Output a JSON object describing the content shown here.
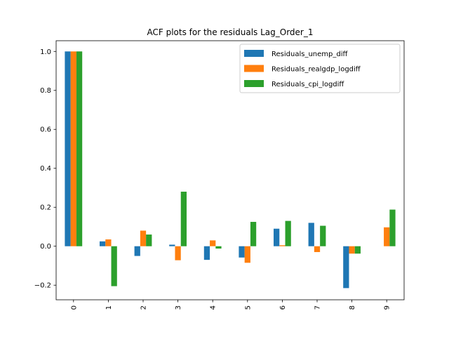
{
  "chart_data": {
    "type": "bar",
    "title": "ACF plots for the residuals Lag_Order_1",
    "xlabel": "",
    "ylabel": "",
    "categories": [
      "0",
      "1",
      "2",
      "3",
      "4",
      "5",
      "6",
      "7",
      "8",
      "9"
    ],
    "series": [
      {
        "name": "Residuals_unemp_diff",
        "color": "#1f77b4",
        "values": [
          1.0,
          0.025,
          -0.05,
          0.008,
          -0.07,
          -0.058,
          0.09,
          0.12,
          -0.215,
          0.0
        ]
      },
      {
        "name": "Residuals_realgdp_logdiff",
        "color": "#ff7f0e",
        "values": [
          1.0,
          0.035,
          0.08,
          -0.072,
          0.03,
          -0.085,
          0.005,
          -0.03,
          -0.038,
          0.097
        ]
      },
      {
        "name": "Residuals_cpi_logdiff",
        "color": "#2ca02c",
        "values": [
          1.0,
          -0.205,
          0.06,
          0.28,
          -0.012,
          0.125,
          0.13,
          0.105,
          -0.038,
          0.188
        ]
      }
    ],
    "ylim": [
      -0.275,
      1.055
    ],
    "yticks": [
      -0.2,
      0.0,
      0.2,
      0.4,
      0.6,
      0.8,
      1.0
    ],
    "ytick_labels": [
      "−0.2",
      "0.0",
      "0.2",
      "0.4",
      "0.6",
      "0.8",
      "1.0"
    ],
    "x_tick_rotation": "vertical",
    "grid": false,
    "legend_position": "upper right"
  }
}
